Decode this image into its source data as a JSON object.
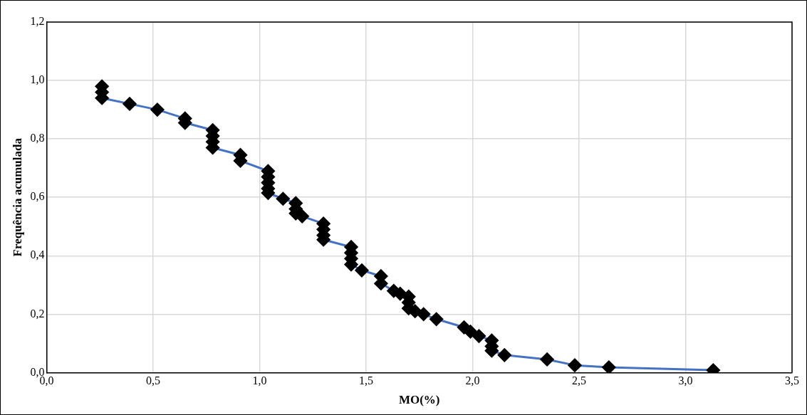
{
  "chart_data": {
    "type": "line",
    "xlabel": "MO(%)",
    "ylabel": "Frequência acumulada",
    "series": [
      {
        "color": "#4472c4",
        "x": [
          0.26,
          0.26,
          0.26,
          0.39,
          0.52,
          0.65,
          0.65,
          0.78,
          0.78,
          0.78,
          0.78,
          0.91,
          0.91,
          1.04,
          1.04,
          1.04,
          1.04,
          1.04,
          1.11,
          1.17,
          1.17,
          1.17,
          1.2,
          1.3,
          1.3,
          1.3,
          1.3,
          1.43,
          1.43,
          1.43,
          1.43,
          1.48,
          1.57,
          1.57,
          1.63,
          1.66,
          1.7,
          1.7,
          1.7,
          1.73,
          1.77,
          1.83,
          1.96,
          1.99,
          2.03,
          2.09,
          2.09,
          2.09,
          2.15,
          2.35,
          2.48,
          2.64,
          3.13
        ],
        "values": [
          0.98,
          0.96,
          0.94,
          0.92,
          0.9,
          0.87,
          0.855,
          0.83,
          0.81,
          0.79,
          0.77,
          0.745,
          0.725,
          0.69,
          0.67,
          0.65,
          0.63,
          0.615,
          0.595,
          0.58,
          0.56,
          0.545,
          0.535,
          0.51,
          0.49,
          0.47,
          0.455,
          0.43,
          0.41,
          0.39,
          0.37,
          0.35,
          0.33,
          0.305,
          0.28,
          0.27,
          0.26,
          0.24,
          0.22,
          0.21,
          0.2,
          0.183,
          0.155,
          0.14,
          0.125,
          0.11,
          0.09,
          0.075,
          0.06,
          0.045,
          0.025,
          0.018,
          0.008
        ]
      }
    ],
    "xlim": [
      0,
      3.5
    ],
    "xticks": [
      {
        "value": 0,
        "label": "0,0"
      },
      {
        "value": 0.5,
        "label": "0,5"
      },
      {
        "value": 1,
        "label": "1,0"
      },
      {
        "value": 1.5,
        "label": "1,5"
      },
      {
        "value": 2,
        "label": "2,0"
      },
      {
        "value": 2.5,
        "label": "2,5"
      },
      {
        "value": 3,
        "label": "3,0"
      },
      {
        "value": 3.5,
        "label": "3,5"
      }
    ],
    "ylim": [
      0,
      1.2
    ],
    "yticks": [
      {
        "value": 0,
        "label": "0,0"
      },
      {
        "value": 0.2,
        "label": "0,2"
      },
      {
        "value": 0.4,
        "label": "0,4"
      },
      {
        "value": 0.6,
        "label": "0,6"
      },
      {
        "value": 0.8,
        "label": "0,8"
      },
      {
        "value": 1,
        "label": "1,0"
      },
      {
        "value": 1.2,
        "label": "1,2"
      }
    ],
    "grid": true,
    "legend": false,
    "marker": "diamond",
    "line_style": "solid"
  }
}
